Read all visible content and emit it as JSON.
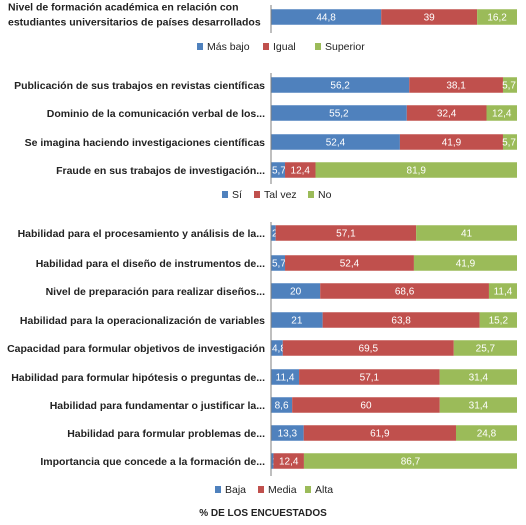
{
  "chart_data": [
    {
      "type": "bar",
      "orientation": "horizontal",
      "stacked": true,
      "categories": [
        "Nivel de formación académica en relación con estudiantes universitarios de países desarrollados"
      ],
      "series": [
        {
          "name": "Más bajo",
          "color": "#4f81bd",
          "values": [
            44.8
          ]
        },
        {
          "name": "Igual",
          "color": "#c0504d",
          "values": [
            39
          ]
        },
        {
          "name": "Superior",
          "color": "#9bbb59",
          "values": [
            16.2
          ]
        }
      ],
      "legend_position": "bottom",
      "xlim": [
        0,
        100
      ]
    },
    {
      "type": "bar",
      "orientation": "horizontal",
      "stacked": true,
      "categories": [
        "Publicación de sus trabajos en revistas científicas",
        "Dominio de la comunicación verbal de los...",
        "Se imagina haciendo investigaciones científicas",
        "Fraude en sus trabajos de investigación..."
      ],
      "series": [
        {
          "name": "Sí",
          "color": "#4f81bd",
          "values": [
            56.2,
            55.2,
            52.4,
            5.7
          ]
        },
        {
          "name": "Tal vez",
          "color": "#c0504d",
          "values": [
            38.1,
            32.4,
            41.9,
            12.4
          ]
        },
        {
          "name": "No",
          "color": "#9bbb59",
          "values": [
            5.7,
            12.4,
            5.7,
            81.9
          ]
        }
      ],
      "legend_position": "bottom",
      "xlim": [
        0,
        100
      ]
    },
    {
      "type": "bar",
      "orientation": "horizontal",
      "stacked": true,
      "categories": [
        "Habilidad para el procesamiento y análisis de la...",
        "Habilidad para el diseño de instrumentos de...",
        "Nivel de preparación para realizar diseños...",
        "Habilidad para la operacionalización de variables",
        "Capacidad para formular objetivos de investigación",
        "Habilidad para formular hipótesis o preguntas de...",
        "Habilidad para fundamentar o justificar la...",
        "Habilidad para formular problemas de...",
        "Importancia que concede a la formación de..."
      ],
      "series": [
        {
          "name": "Baja",
          "color": "#4f81bd",
          "values": [
            1.9,
            5.7,
            20,
            21,
            4.8,
            11.4,
            8.6,
            13.3,
            1
          ]
        },
        {
          "name": "Media",
          "color": "#c0504d",
          "values": [
            57.1,
            52.4,
            68.6,
            63.8,
            69.5,
            57.1,
            60,
            61.9,
            12.4
          ]
        },
        {
          "name": "Alta",
          "color": "#9bbb59",
          "values": [
            41,
            41.9,
            11.4,
            15.2,
            25.7,
            31.4,
            31.4,
            24.8,
            86.7
          ]
        }
      ],
      "value_labels": [
        [
          "2",
          "57,1",
          "41"
        ],
        [
          "5,7",
          "52,4",
          "41,9"
        ],
        [
          "20",
          "68,6",
          "11,4"
        ],
        [
          "21",
          "63,8",
          "15,2"
        ],
        [
          "4,8",
          "69,5",
          "25,7"
        ],
        [
          "11,4",
          "57,1",
          "31,4"
        ],
        [
          "8,6",
          "60",
          "31,4"
        ],
        [
          "13,3",
          "61,9",
          "24,8"
        ],
        [
          "1",
          "12,4",
          "86,7"
        ]
      ],
      "legend_position": "bottom",
      "xlabel": "% DE LOS ENCUESTADOS",
      "xlim": [
        0,
        100
      ]
    }
  ]
}
